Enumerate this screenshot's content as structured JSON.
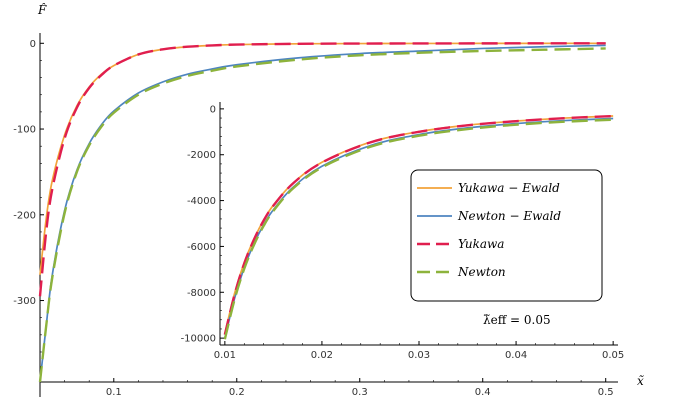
{
  "colors": {
    "yukawa_ewald": "#F2A33A",
    "newton_ewald": "#4E85C0",
    "yukawa": "#E01E4E",
    "newton": "#8DB33C"
  },
  "chart_data": [
    {
      "type": "line",
      "xlabel": "x̃",
      "ylabel": "F̂",
      "xlim": [
        0.04,
        0.51
      ],
      "ylim": [
        -395,
        12
      ],
      "x_ticks": [
        0.1,
        0.2,
        0.3,
        0.4,
        0.5
      ],
      "x_tick_labels": [
        "0.1",
        "0.2",
        "0.3",
        "0.4",
        "0.5"
      ],
      "y_ticks": [
        0,
        -100,
        -200,
        -300
      ],
      "y_tick_labels": [
        "0",
        "-100",
        "-200",
        "-300"
      ],
      "series": [
        {
          "name": "Yukawa−Ewald",
          "color_key": "yukawa_ewald",
          "dash": "solid",
          "x": [
            0.04,
            0.045,
            0.05,
            0.06,
            0.07,
            0.08,
            0.09,
            0.1,
            0.12,
            0.14,
            0.16,
            0.18,
            0.2,
            0.25,
            0.3,
            0.4,
            0.5
          ],
          "y": [
            -270,
            -205,
            -160,
            -107,
            -73,
            -51,
            -36,
            -26,
            -13,
            -7,
            -4,
            -2.5,
            -1.5,
            -0.6,
            -0.3,
            -0.1,
            -0.05
          ]
        },
        {
          "name": "Newton−Ewald",
          "color_key": "newton_ewald",
          "dash": "solid",
          "x": [
            0.04,
            0.045,
            0.05,
            0.06,
            0.07,
            0.08,
            0.09,
            0.1,
            0.12,
            0.14,
            0.16,
            0.18,
            0.2,
            0.25,
            0.3,
            0.35,
            0.4,
            0.45,
            0.5
          ],
          "y": [
            -395,
            -330,
            -270,
            -195,
            -148,
            -117,
            -95,
            -79,
            -58,
            -45,
            -36,
            -30,
            -25,
            -17,
            -12,
            -9,
            -6,
            -4,
            -2.5
          ]
        },
        {
          "name": "Yukawa",
          "color_key": "yukawa",
          "dash": "dashed",
          "x": [
            0.04,
            0.045,
            0.05,
            0.06,
            0.07,
            0.08,
            0.09,
            0.1,
            0.12,
            0.14,
            0.16,
            0.18,
            0.2,
            0.25,
            0.3,
            0.4,
            0.5
          ],
          "y": [
            -295,
            -220,
            -170,
            -111,
            -75,
            -52,
            -37,
            -26,
            -13,
            -7,
            -4,
            -2.5,
            -1.5,
            -0.6,
            -0.3,
            -0.1,
            -0.05
          ]
        },
        {
          "name": "Newton",
          "color_key": "newton",
          "dash": "dashed",
          "x": [
            0.04,
            0.045,
            0.05,
            0.06,
            0.07,
            0.08,
            0.09,
            0.1,
            0.12,
            0.14,
            0.16,
            0.18,
            0.2,
            0.25,
            0.3,
            0.35,
            0.4,
            0.45,
            0.5
          ],
          "y": [
            -395,
            -330,
            -273,
            -198,
            -150,
            -119,
            -97,
            -81,
            -60,
            -47,
            -38,
            -32,
            -27,
            -19,
            -14,
            -11,
            -9,
            -7.5,
            -6
          ]
        }
      ]
    },
    {
      "type": "line",
      "xlim": [
        0.0095,
        0.0505
      ],
      "ylim": [
        -10300,
        300
      ],
      "x_ticks": [
        0.01,
        0.02,
        0.03,
        0.04,
        0.05
      ],
      "x_tick_labels": [
        "0.01",
        "0.02",
        "0.03",
        "0.04",
        "0.05"
      ],
      "y_ticks": [
        0,
        -2000,
        -4000,
        -6000,
        -8000,
        -10000
      ],
      "y_tick_labels": [
        "0",
        "-2000",
        "-4000",
        "-6000",
        "-8000",
        "-10000"
      ],
      "legend_position": "right",
      "annotation": "λ̃eff = 0.05",
      "series": [
        {
          "name": "Yukawa−Ewald",
          "color_key": "yukawa_ewald",
          "dash": "solid",
          "x": [
            0.01,
            0.011,
            0.012,
            0.013,
            0.014,
            0.015,
            0.017,
            0.02,
            0.025,
            0.03,
            0.035,
            0.04,
            0.045,
            0.05
          ],
          "y": [
            -9800,
            -8050,
            -6700,
            -5680,
            -4850,
            -4200,
            -3250,
            -2330,
            -1450,
            -990,
            -710,
            -530,
            -400,
            -310
          ]
        },
        {
          "name": "Newton−Ewald",
          "color_key": "newton_ewald",
          "dash": "solid",
          "x": [
            0.01,
            0.011,
            0.012,
            0.013,
            0.014,
            0.015,
            0.017,
            0.02,
            0.025,
            0.03,
            0.035,
            0.04,
            0.045,
            0.05
          ],
          "y": [
            -10000,
            -8270,
            -6920,
            -5880,
            -5050,
            -4400,
            -3430,
            -2500,
            -1600,
            -1120,
            -830,
            -640,
            -510,
            -420
          ]
        },
        {
          "name": "Yukawa",
          "color_key": "yukawa",
          "dash": "dashed",
          "x": [
            0.01,
            0.011,
            0.012,
            0.013,
            0.014,
            0.015,
            0.017,
            0.02,
            0.025,
            0.03,
            0.035,
            0.04,
            0.045,
            0.05
          ],
          "y": [
            -9850,
            -8100,
            -6740,
            -5700,
            -4870,
            -4220,
            -3260,
            -2340,
            -1460,
            -1000,
            -715,
            -535,
            -405,
            -315
          ]
        },
        {
          "name": "Newton",
          "color_key": "newton",
          "dash": "dashed",
          "x": [
            0.01,
            0.011,
            0.012,
            0.013,
            0.014,
            0.015,
            0.017,
            0.02,
            0.025,
            0.03,
            0.035,
            0.04,
            0.045,
            0.05
          ],
          "y": [
            -10050,
            -8320,
            -6970,
            -5930,
            -5100,
            -4450,
            -3480,
            -2550,
            -1650,
            -1170,
            -880,
            -690,
            -560,
            -470
          ]
        }
      ]
    }
  ],
  "legend": {
    "items": [
      {
        "label": "Yukawa − Ewald",
        "color_key": "yukawa_ewald",
        "dash": "solid"
      },
      {
        "label": "Newton − Ewald",
        "color_key": "newton_ewald",
        "dash": "solid"
      },
      {
        "label": "Yukawa",
        "color_key": "yukawa",
        "dash": "dashed"
      },
      {
        "label": "Newton",
        "color_key": "newton",
        "dash": "dashed"
      }
    ]
  }
}
